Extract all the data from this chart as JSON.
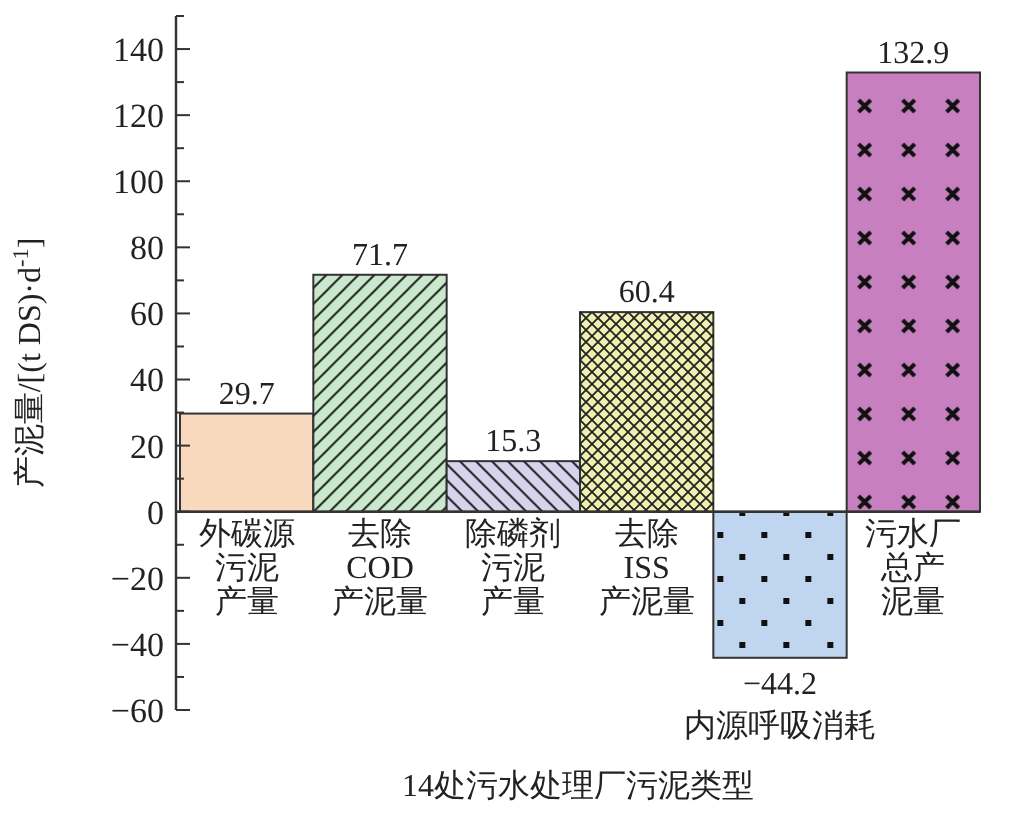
{
  "chart_data": {
    "type": "bar",
    "xlabel": "14处污水处理厂污泥类型",
    "ylabel": "产泥量/[(t DS)·d$^{-1}$]",
    "categories": [
      "外碳源污泥产量",
      "去除\nCOD\n产泥量",
      "除磷剂污泥产量",
      "去除\nISS\n产泥量",
      "内源呼吸消耗",
      "污水厂总产泥量"
    ],
    "values": [
      29.7,
      71.7,
      15.3,
      60.4,
      -44.2,
      132.9
    ],
    "colors": [
      "#f9d9bd",
      "#c9e8cc",
      "#d8d3ec",
      "#eef0b0",
      "#c0d6f0",
      "#c77fc0"
    ],
    "data_labels": true,
    "ylim": [
      -60,
      150
    ],
    "yticks": [
      -60,
      {
        "value": -50,
        "label": null
      },
      -40,
      {
        "value": -30,
        "label": null
      },
      -20,
      {
        "value": -10,
        "label": null
      },
      0,
      {
        "value": 10,
        "label": null
      },
      20,
      {
        "value": 30,
        "label": null
      },
      40,
      {
        "value": 50,
        "label": null
      },
      60,
      {
        "value": 70,
        "label": null
      },
      80,
      {
        "value": 90,
        "label": null
      },
      100,
      {
        "value": 110,
        "label": null
      },
      120,
      {
        "value": 130,
        "label": null
      },
      140,
      {
        "value": 150,
        "label": null
      }
    ]
  }
}
